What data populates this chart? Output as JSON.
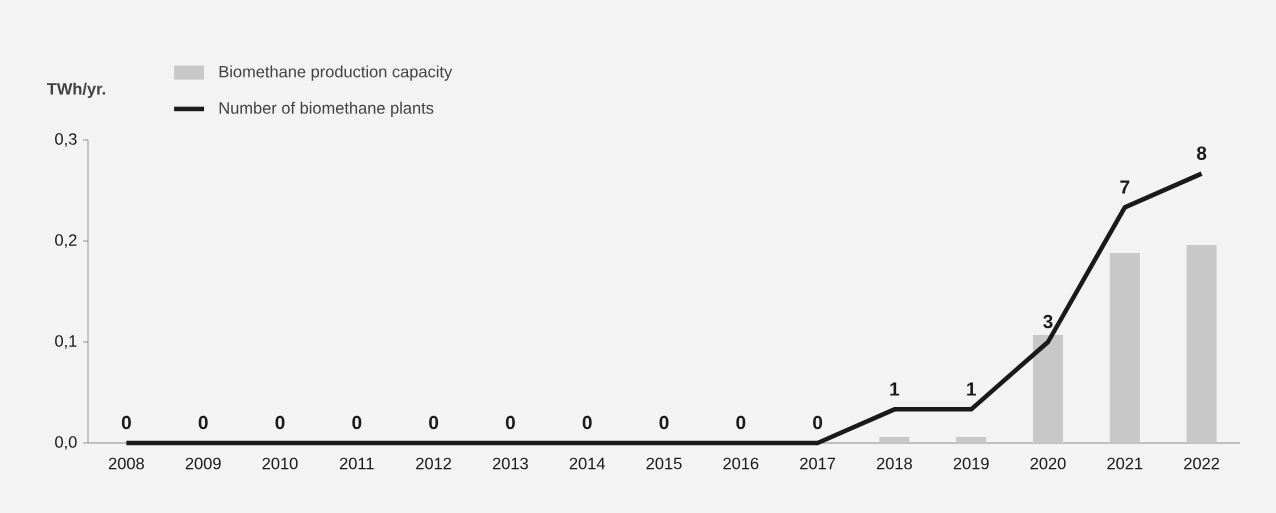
{
  "chart_data": {
    "type": "bar",
    "ylabel": "TWh/yr.",
    "categories": [
      "2008",
      "2009",
      "2010",
      "2011",
      "2012",
      "2013",
      "2014",
      "2015",
      "2016",
      "2017",
      "2018",
      "2019",
      "2020",
      "2021",
      "2022"
    ],
    "series": [
      {
        "name": "Biomethane production capacity",
        "color": "#c8c8c8",
        "values": [
          0,
          0,
          0,
          0,
          0,
          0,
          0,
          0,
          0,
          0,
          0.006,
          0.006,
          0.107,
          0.188,
          0.196
        ]
      },
      {
        "name": "Number of biomethane plants",
        "type": "line",
        "axis": "y2",
        "color": "#1a1a1a",
        "values": [
          0,
          0,
          0,
          0,
          0,
          0,
          0,
          0,
          0,
          0,
          1,
          1,
          3,
          7,
          8
        ],
        "value_labels": [
          "0",
          "0",
          "0",
          "0",
          "0",
          "0",
          "0",
          "0",
          "0",
          "0",
          "1",
          "1",
          "3",
          "7",
          "8"
        ]
      }
    ],
    "ylim": [
      0,
      0.3
    ],
    "yticks": [
      {
        "value": 0,
        "label": "0,0"
      },
      {
        "value": 0.1,
        "label": "0,1"
      },
      {
        "value": 0.2,
        "label": "0,2"
      },
      {
        "value": 0.3,
        "label": "0,3"
      }
    ],
    "y2lim": [
      0,
      9
    ],
    "grid": false,
    "legend": "top left",
    "marker": "none",
    "line_style": "solid"
  }
}
